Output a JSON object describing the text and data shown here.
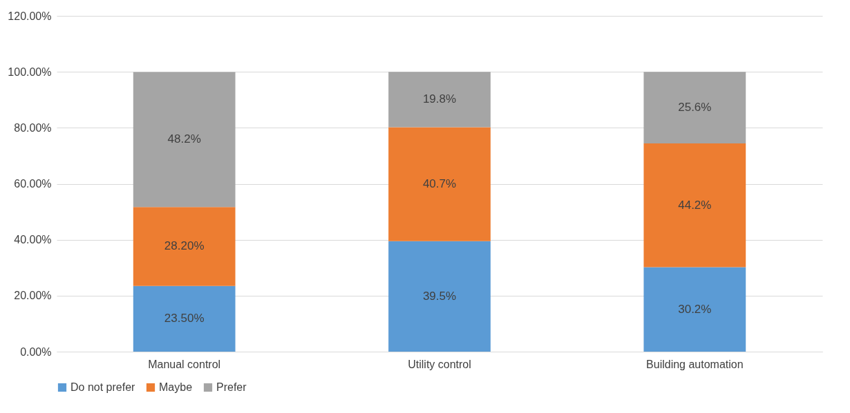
{
  "chart_data": {
    "type": "bar",
    "stacked": true,
    "categories": [
      "Manual control",
      "Utility control",
      "Building automation"
    ],
    "series": [
      {
        "name": "Do not prefer",
        "color": "#5b9bd5",
        "values": [
          23.5,
          39.5,
          30.2
        ],
        "value_labels": [
          "23.50%",
          "39.5%",
          "30.2%"
        ]
      },
      {
        "name": "Maybe",
        "color": "#ed7d31",
        "values": [
          28.2,
          40.7,
          44.2
        ],
        "value_labels": [
          "28.20%",
          "40.7%",
          "44.2%"
        ]
      },
      {
        "name": "Prefer",
        "color": "#a5a5a5",
        "values": [
          48.2,
          19.8,
          25.6
        ],
        "value_labels": [
          "48.2%",
          "19.8%",
          "25.6%"
        ]
      }
    ],
    "ylim": [
      0,
      120
    ],
    "yticks": [
      {
        "value": 0,
        "label": "0.00%"
      },
      {
        "value": 20,
        "label": "20.00%"
      },
      {
        "value": 40,
        "label": "40.00%"
      },
      {
        "value": 60,
        "label": "60.00%"
      },
      {
        "value": 80,
        "label": "80.00%"
      },
      {
        "value": 100,
        "label": "100.00%"
      },
      {
        "value": 120,
        "label": "120.00%"
      }
    ],
    "grid": "y",
    "legend": "bottom"
  }
}
